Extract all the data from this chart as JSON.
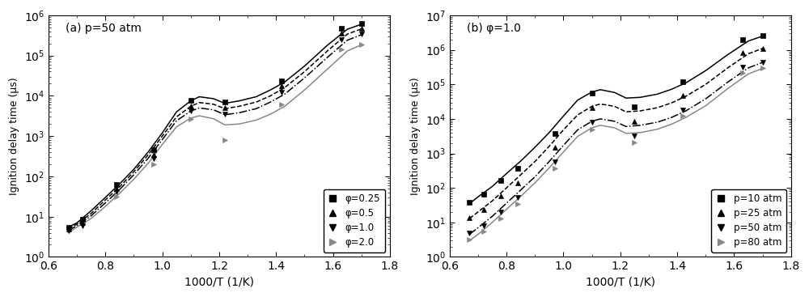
{
  "panel_a": {
    "title": "(a) p=50 atm",
    "xlabel": "1000/T (1/K)",
    "ylabel": "Ignition delay time (μs)",
    "xlim": [
      0.62,
      1.78
    ],
    "ylim_log": [
      1.0,
      1000000.0
    ],
    "series": [
      {
        "label": "φ=0.25",
        "color": "#000000",
        "linestyle": "-",
        "marker": "s",
        "markercolor": "#000000",
        "line_x": [
          0.67,
          0.7,
          0.75,
          0.8,
          0.85,
          0.9,
          0.95,
          1.0,
          1.05,
          1.1,
          1.13,
          1.18,
          1.22,
          1.27,
          1.33,
          1.38,
          1.43,
          1.5,
          1.58,
          1.65,
          1.7
        ],
        "line_y": [
          5.5,
          7.0,
          14.0,
          30.0,
          65.0,
          150.0,
          400.0,
          1200.0,
          4000.0,
          7500.0,
          9500.0,
          8500.0,
          6500.0,
          7500.0,
          9500.0,
          14000.0,
          22000.0,
          55000.0,
          180000.0,
          450000.0,
          600000.0
        ],
        "pts_x": [
          0.67,
          0.72,
          0.84,
          0.97,
          1.1,
          1.22,
          1.42,
          1.63,
          1.7
        ],
        "pts_y": [
          5.5,
          8.5,
          62.0,
          450.0,
          7800.0,
          7000.0,
          24000.0,
          480000.0,
          620000.0
        ]
      },
      {
        "label": "φ=0.5",
        "color": "#000000",
        "linestyle": "--",
        "marker": "^",
        "markercolor": "#000000",
        "line_x": [
          0.67,
          0.7,
          0.75,
          0.8,
          0.85,
          0.9,
          0.95,
          1.0,
          1.05,
          1.1,
          1.13,
          1.18,
          1.22,
          1.27,
          1.33,
          1.38,
          1.43,
          1.5,
          1.58,
          1.65,
          1.7
        ],
        "line_y": [
          5.0,
          6.5,
          12.0,
          26.0,
          55.0,
          130.0,
          340.0,
          1000.0,
          3000.0,
          5500.0,
          6800.0,
          6200.0,
          4800.0,
          5500.0,
          7000.0,
          10000.0,
          16000.0,
          40000.0,
          130000.0,
          340000.0,
          460000.0
        ],
        "pts_x": [
          0.67,
          0.72,
          0.84,
          0.97,
          1.1,
          1.22,
          1.42,
          1.63,
          1.7
        ],
        "pts_y": [
          5.0,
          7.0,
          50.0,
          350.0,
          5500.0,
          5200.0,
          18000.0,
          360000.0,
          470000.0
        ]
      },
      {
        "label": "φ=1.0",
        "color": "#000000",
        "linestyle": "-.",
        "marker": "v",
        "markercolor": "#000000",
        "line_x": [
          0.67,
          0.7,
          0.75,
          0.8,
          0.85,
          0.9,
          0.95,
          1.0,
          1.05,
          1.1,
          1.13,
          1.18,
          1.22,
          1.27,
          1.33,
          1.38,
          1.43,
          1.5,
          1.58,
          1.65,
          1.7
        ],
        "line_y": [
          4.5,
          6.0,
          10.5,
          22.0,
          47.0,
          110.0,
          280.0,
          820.0,
          2400.0,
          4200.0,
          5000.0,
          4500.0,
          3400.0,
          3800.0,
          4800.0,
          7000.0,
          11000.0,
          28000.0,
          90000.0,
          240000.0,
          330000.0
        ],
        "pts_x": [
          0.67,
          0.72,
          0.84,
          0.97,
          1.1,
          1.22,
          1.42,
          1.63,
          1.7
        ],
        "pts_y": [
          4.5,
          6.0,
          42.0,
          280.0,
          4200.0,
          3600.0,
          12000.0,
          250000.0,
          340000.0
        ]
      },
      {
        "label": "φ=2.0",
        "color": "#888888",
        "linestyle": "-",
        "marker": ">",
        "markercolor": "#888888",
        "line_x": [
          0.67,
          0.7,
          0.75,
          0.8,
          0.85,
          0.9,
          0.95,
          1.0,
          1.05,
          1.1,
          1.13,
          1.18,
          1.22,
          1.27,
          1.33,
          1.38,
          1.43,
          1.5,
          1.58,
          1.65,
          1.7
        ],
        "line_y": [
          4.0,
          5.5,
          9.0,
          18.0,
          38.0,
          85.0,
          210.0,
          620.0,
          1700.0,
          2800.0,
          3200.0,
          2700.0,
          1900.0,
          2000.0,
          2500.0,
          3500.0,
          5500.0,
          14000.0,
          46000.0,
          130000.0,
          185000.0
        ],
        "pts_x": [
          0.84,
          0.97,
          1.1,
          1.22,
          1.42,
          1.63,
          1.7
        ],
        "pts_y": [
          32.0,
          200.0,
          2700.0,
          800.0,
          6000.0,
          140000.0,
          190000.0
        ]
      }
    ]
  },
  "panel_b": {
    "title": "(b) φ=1.0",
    "xlabel": "1000/T (1/K)",
    "ylabel": "Ignition delay time (μs)",
    "xlim": [
      0.62,
      1.78
    ],
    "ylim_log": [
      1.0,
      10000000.0
    ],
    "series": [
      {
        "label": "p=10 atm",
        "color": "#000000",
        "linestyle": "-",
        "marker": "s",
        "markercolor": "#000000",
        "line_x": [
          0.67,
          0.7,
          0.75,
          0.8,
          0.85,
          0.9,
          0.95,
          1.0,
          1.05,
          1.1,
          1.13,
          1.18,
          1.22,
          1.27,
          1.33,
          1.38,
          1.43,
          1.5,
          1.58,
          1.65,
          1.7
        ],
        "line_y": [
          35.0,
          55.0,
          110.0,
          260.0,
          600.0,
          1500.0,
          4000.0,
          12000.0,
          35000.0,
          60000.0,
          70000.0,
          58000.0,
          40000.0,
          42000.0,
          52000.0,
          72000.0,
          110000.0,
          250000.0,
          750000.0,
          1800000.0,
          2500000.0
        ],
        "pts_x": [
          0.67,
          0.72,
          0.78,
          0.84,
          0.97,
          1.1,
          1.25,
          1.42,
          1.63,
          1.7
        ],
        "pts_y": [
          38.0,
          65.0,
          160.0,
          370.0,
          3800.0,
          55000.0,
          22000.0,
          120000.0,
          2000000.0,
          2600000.0
        ]
      },
      {
        "label": "p=25 atm",
        "color": "#000000",
        "linestyle": "--",
        "marker": "^",
        "markercolor": "#000000",
        "line_x": [
          0.67,
          0.7,
          0.75,
          0.8,
          0.85,
          0.9,
          0.95,
          1.0,
          1.05,
          1.1,
          1.13,
          1.18,
          1.22,
          1.27,
          1.33,
          1.38,
          1.43,
          1.5,
          1.58,
          1.65,
          1.7
        ],
        "line_y": [
          13.0,
          20.0,
          42.0,
          100.0,
          240.0,
          580.0,
          1600.0,
          4800.0,
          13000.0,
          23000.0,
          27000.0,
          23000.0,
          16000.0,
          17000.0,
          21000.0,
          29000.0,
          45000.0,
          100000.0,
          310000.0,
          770000.0,
          1100000.0
        ],
        "pts_x": [
          0.67,
          0.72,
          0.78,
          0.84,
          0.97,
          1.1,
          1.25,
          1.42,
          1.63,
          1.7
        ],
        "pts_y": [
          14.0,
          24.0,
          60.0,
          140.0,
          1500.0,
          21000.0,
          8500.0,
          48000.0,
          820000.0,
          1100000.0
        ]
      },
      {
        "label": "p=50 atm",
        "color": "#000000",
        "linestyle": "-.",
        "marker": "v",
        "markercolor": "#000000",
        "line_x": [
          0.67,
          0.7,
          0.75,
          0.8,
          0.85,
          0.9,
          0.95,
          1.0,
          1.05,
          1.1,
          1.13,
          1.18,
          1.22,
          1.27,
          1.33,
          1.38,
          1.43,
          1.5,
          1.58,
          1.65,
          1.7
        ],
        "line_y": [
          4.5,
          7.0,
          15.0,
          36.0,
          87.0,
          210.0,
          580.0,
          1700.0,
          4800.0,
          8500.0,
          10000.0,
          8500.0,
          6000.0,
          6500.0,
          8000.0,
          11000.0,
          17000.0,
          38000.0,
          120000.0,
          300000.0,
          430000.0
        ],
        "pts_x": [
          0.67,
          0.72,
          0.78,
          0.84,
          0.97,
          1.1,
          1.25,
          1.42,
          1.63,
          1.7
        ],
        "pts_y": [
          5.0,
          8.0,
          20.0,
          52.0,
          560.0,
          7800.0,
          3200.0,
          18000.0,
          320000.0,
          440000.0
        ]
      },
      {
        "label": "p=80 atm",
        "color": "#888888",
        "linestyle": "-",
        "marker": ">",
        "markercolor": "#888888",
        "line_x": [
          0.67,
          0.7,
          0.75,
          0.8,
          0.85,
          0.9,
          0.95,
          1.0,
          1.05,
          1.1,
          1.13,
          1.18,
          1.22,
          1.27,
          1.33,
          1.38,
          1.43,
          1.5,
          1.58,
          1.65,
          1.7
        ],
        "line_y": [
          3.0,
          4.5,
          10.0,
          24.0,
          57.0,
          140.0,
          380.0,
          1100.0,
          3100.0,
          5500.0,
          6500.0,
          5500.0,
          3800.0,
          4000.0,
          5000.0,
          7000.0,
          11000.0,
          24000.0,
          78000.0,
          200000.0,
          290000.0
        ],
        "pts_x": [
          0.67,
          0.72,
          0.78,
          0.84,
          0.97,
          1.1,
          1.25,
          1.42,
          1.63,
          1.7
        ],
        "pts_y": [
          3.2,
          5.5,
          13.0,
          34.0,
          370.0,
          5000.0,
          2100.0,
          12000.0,
          210000.0,
          295000.0
        ]
      }
    ]
  }
}
